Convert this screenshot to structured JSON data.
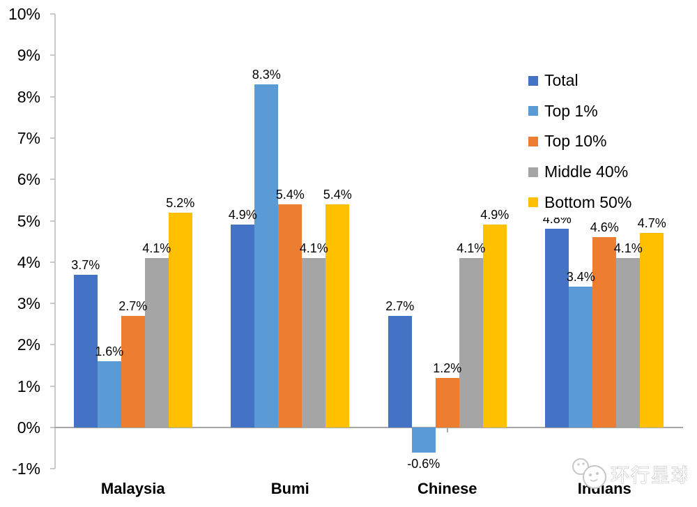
{
  "chart_data": {
    "type": "bar",
    "title": "",
    "categories": [
      "Malaysia",
      "Bumi",
      "Chinese",
      "Indians"
    ],
    "series": [
      {
        "name": "Total",
        "color": "#4472C4",
        "values": [
          3.7,
          4.9,
          2.7,
          4.8
        ],
        "labels": [
          "3.7%",
          "4.9%",
          "2.7%",
          "4.8%"
        ]
      },
      {
        "name": "Top 1%",
        "color": "#5B9BD5",
        "values": [
          1.6,
          8.3,
          -0.6,
          3.4
        ],
        "labels": [
          "1.6%",
          "8.3%",
          "-0.6%",
          "3.4%"
        ]
      },
      {
        "name": "Top 10%",
        "color": "#ED7D31",
        "values": [
          2.7,
          5.4,
          1.2,
          4.6
        ],
        "labels": [
          "2.7%",
          "5.4%",
          "1.2%",
          "4.6%"
        ]
      },
      {
        "name": "Middle 40%",
        "color": "#A5A5A5",
        "values": [
          4.1,
          4.1,
          4.1,
          4.1
        ],
        "labels": [
          "4.1%",
          "4.1%",
          "4.1%",
          "4.1%"
        ]
      },
      {
        "name": "Bottom 50%",
        "color": "#FFC000",
        "values": [
          5.2,
          5.4,
          4.9,
          4.7
        ],
        "labels": [
          "5.2%",
          "5.4%",
          "4.9%",
          "4.7%"
        ]
      }
    ],
    "y_axis": {
      "min": -1,
      "max": 10,
      "step": 1,
      "tick_labels": [
        "10%",
        "9%",
        "8%",
        "7%",
        "6%",
        "5%",
        "4%",
        "3%",
        "2%",
        "1%",
        "0%",
        "-1%"
      ]
    },
    "legend": {
      "position": "top-right",
      "entries": [
        "Total",
        "Top 1%",
        "Top 10%",
        "Middle 40%",
        "Bottom 50%"
      ]
    },
    "grid": false,
    "axis_color": "#C9C9C9",
    "baseline_color": "#A6A6A6",
    "label_color": "#000000"
  },
  "watermark": {
    "text": "环行星球"
  }
}
